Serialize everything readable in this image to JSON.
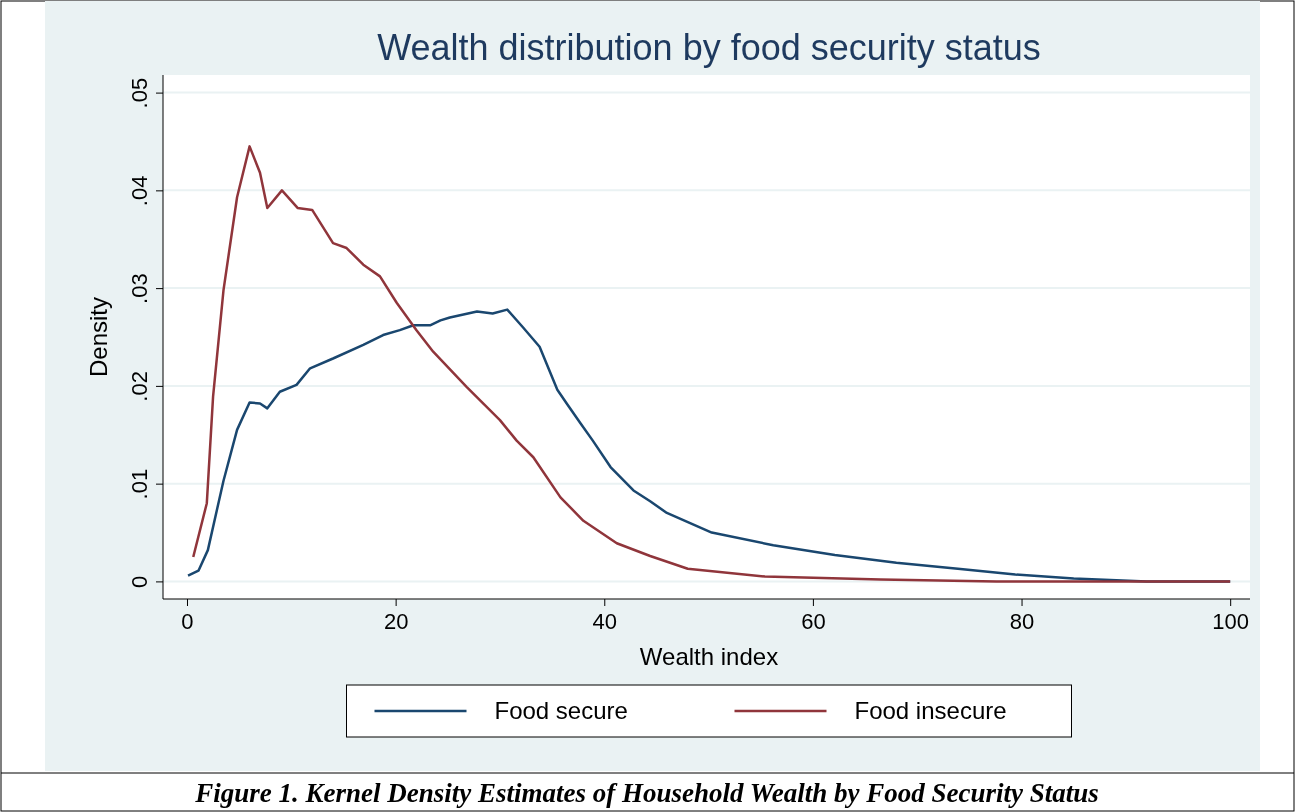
{
  "chart_data": {
    "type": "line",
    "title": "Wealth distribution by food security status",
    "xlabel": "Wealth index",
    "ylabel": "Density",
    "xlim": [
      -2.3,
      101.9
    ],
    "xticks": [
      0,
      20,
      40,
      60,
      80,
      100
    ],
    "ylim": [
      -0.0018,
      0.0518
    ],
    "yticks": [
      0,
      {
        "value": 0.01,
        "label": ".01"
      },
      {
        "value": 0.02,
        "label": ".02"
      },
      {
        "value": 0.03,
        "label": ".03"
      },
      {
        "value": 0.04,
        "label": ".04"
      },
      {
        "value": 0.05,
        "label": ".05"
      }
    ],
    "grid": "y",
    "legend": "bottom",
    "marker": "none",
    "line_style": "solid",
    "annotations": [
      "Figure 1. Kernel Density Estimates of Household Wealth by Food Security Status"
    ],
    "series": [
      {
        "name": "Food secure",
        "color": "#1a476f",
        "x": [
          0.1,
          1.1,
          2,
          3.5,
          4.8,
          6,
          7,
          7.7,
          8.9,
          10.5,
          11.8,
          14,
          16.9,
          18.8,
          20.4,
          21.7,
          23.3,
          24.3,
          25.2,
          27.8,
          29.3,
          30.7,
          32.2,
          33.8,
          35.5,
          36.4,
          37.7,
          38.9,
          40.6,
          42.8,
          44.4,
          46,
          50.3,
          56.2,
          62.1,
          68,
          73.9,
          79.4,
          85,
          92,
          100
        ],
        "values": [
          0.0006,
          0.0011,
          0.0032,
          0.0103,
          0.0155,
          0.0183,
          0.0182,
          0.0177,
          0.0194,
          0.0201,
          0.0218,
          0.0228,
          0.0242,
          0.0252,
          0.0257,
          0.0262,
          0.0262,
          0.0267,
          0.027,
          0.0276,
          0.0274,
          0.0278,
          0.026,
          0.024,
          0.0196,
          0.0182,
          0.0162,
          0.0144,
          0.0117,
          0.0093,
          0.0082,
          0.007,
          0.005,
          0.0037,
          0.0027,
          0.0019,
          0.0013,
          0.0007,
          0.0003,
          0,
          0
        ]
      },
      {
        "name": "Food insecure",
        "color": "#90353b",
        "x": [
          0.6,
          1.9,
          2.5,
          3.5,
          4.8,
          6,
          7,
          7.7,
          9.1,
          10.6,
          12,
          14,
          15.3,
          16.9,
          18.5,
          20.1,
          22,
          23.6,
          26.8,
          30,
          31.6,
          33.2,
          35.8,
          38,
          41.2,
          44.4,
          48,
          55.4,
          66.5,
          77.6,
          100
        ],
        "values": [
          0.0025,
          0.008,
          0.0189,
          0.0298,
          0.0393,
          0.0445,
          0.0418,
          0.0382,
          0.04,
          0.0382,
          0.038,
          0.0346,
          0.0341,
          0.0324,
          0.0312,
          0.0285,
          0.0257,
          0.0235,
          0.0199,
          0.0165,
          0.0144,
          0.0127,
          0.0086,
          0.0062,
          0.0039,
          0.0026,
          0.0013,
          0.0005,
          0.0002,
          0,
          0
        ]
      }
    ]
  }
}
